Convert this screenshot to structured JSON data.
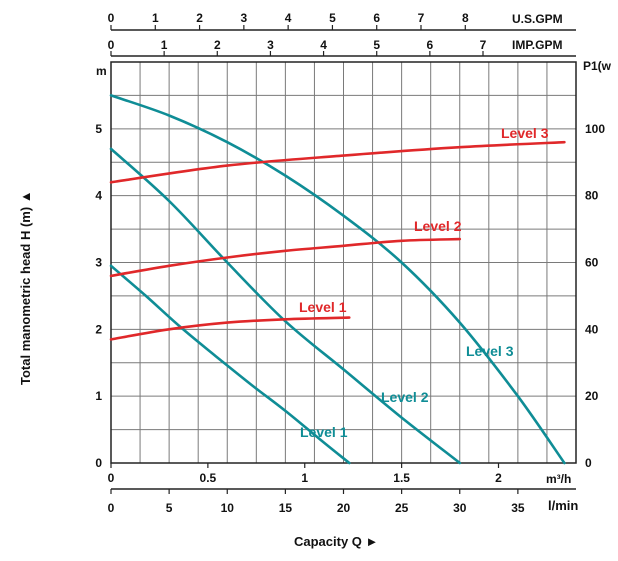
{
  "chart_data": {
    "type": "line",
    "title": "",
    "grid": true,
    "axes": {
      "left": {
        "unit": "m",
        "title": "Total manometric head H (m) ▲",
        "range": [
          0,
          6
        ],
        "ticks": [
          "0",
          "1",
          "2",
          "3",
          "4",
          "5"
        ]
      },
      "right": {
        "unit": "P1(w",
        "range": [
          0,
          120
        ],
        "ticks": [
          "0",
          "20",
          "40",
          "60",
          "80",
          "100"
        ]
      },
      "bottom_primary": {
        "unit": "m³/h",
        "range": [
          0,
          2.4
        ],
        "ticks": [
          "0",
          "0.5",
          "1",
          "1.5",
          "2"
        ]
      },
      "bottom_secondary": {
        "unit": "l/min",
        "range": [
          0,
          40
        ],
        "ticks": [
          "0",
          "5",
          "10",
          "15",
          "20",
          "25",
          "30",
          "35"
        ]
      },
      "top_us": {
        "unit": "U.S.GPM",
        "range": [
          0,
          10.5
        ],
        "ticks": [
          "0",
          "1",
          "2",
          "3",
          "4",
          "5",
          "6",
          "7",
          "8"
        ]
      },
      "top_imp": {
        "unit": "IMP.GPM",
        "range": [
          0,
          8.75
        ],
        "ticks": [
          "0",
          "1",
          "2",
          "3",
          "4",
          "5",
          "6",
          "7"
        ]
      },
      "xlabel": "Capacity Q ►"
    },
    "head_series": [
      {
        "name": "Level 1",
        "axis": "left",
        "x_lmin": [
          0,
          3,
          6,
          9,
          12,
          15,
          18,
          20.5
        ],
        "y_m": [
          2.95,
          2.5,
          2.03,
          1.6,
          1.18,
          0.78,
          0.35,
          0
        ]
      },
      {
        "name": "Level 2",
        "axis": "left",
        "x_lmin": [
          0,
          5,
          10,
          15,
          20,
          25,
          30
        ],
        "y_m": [
          4.7,
          3.92,
          3.0,
          2.12,
          1.4,
          0.68,
          0
        ]
      },
      {
        "name": "Level 3",
        "axis": "left",
        "x_lmin": [
          0,
          5,
          10,
          15,
          20,
          25,
          30,
          35,
          39
        ],
        "y_m": [
          5.5,
          5.2,
          4.8,
          4.3,
          3.7,
          3.0,
          2.1,
          1.0,
          0
        ]
      }
    ],
    "power_series": [
      {
        "name": "Level 1",
        "axis": "right",
        "x_lmin": [
          0,
          5,
          10,
          15,
          20.5
        ],
        "y_w": [
          37,
          40,
          42,
          43,
          43.5
        ]
      },
      {
        "name": "Level 2",
        "axis": "right",
        "x_lmin": [
          0,
          5,
          10,
          15,
          20,
          25,
          30
        ],
        "y_w": [
          56,
          59,
          61.5,
          63.5,
          65,
          66.5,
          67
        ]
      },
      {
        "name": "Level 3",
        "axis": "right",
        "x_lmin": [
          0,
          10,
          20,
          30,
          39
        ],
        "y_w": [
          84,
          89,
          92,
          94.5,
          96
        ]
      }
    ],
    "colors": {
      "head": "#0f8d96",
      "power": "#e0282a",
      "grid": "#7a7a7a"
    }
  }
}
